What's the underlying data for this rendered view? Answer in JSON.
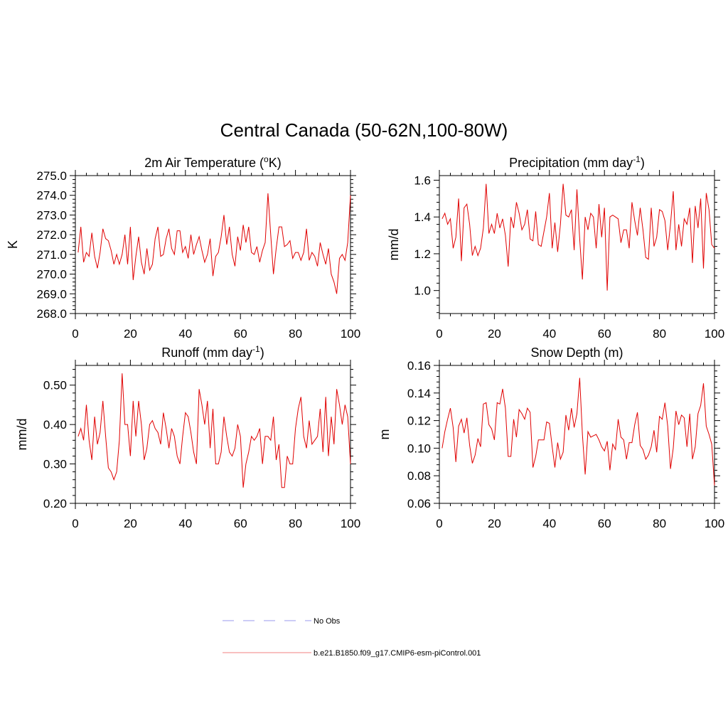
{
  "figure": {
    "title": "Central Canada (50-62N,100-80W)"
  },
  "legend": {
    "items": [
      {
        "label": "No Obs",
        "color": "#9999ee",
        "dash": true
      },
      {
        "label": "b.e21.B1850.f09_g17.CMIP6-esm-piControl.001",
        "color": "#f08080",
        "dash": false
      }
    ]
  },
  "chart_data": [
    {
      "type": "line",
      "title": "2m Air Temperature (",
      "title_sup": "o",
      "title_suffix": "K)",
      "xlabel": "",
      "ylabel": "K",
      "xlim": [
        0,
        100
      ],
      "ylim": [
        268,
        275
      ],
      "xticks": [
        0,
        20,
        40,
        60,
        80,
        100
      ],
      "xtick_labels": [
        "0",
        "20",
        "40",
        "60",
        "80",
        "100"
      ],
      "yticks": [
        268,
        269,
        270,
        271,
        272,
        273,
        274,
        275
      ],
      "ytick_labels": [
        "268.0",
        "269.0",
        "270.0",
        "271.0",
        "272.0",
        "273.0",
        "274.0",
        "275.0"
      ],
      "series": [
        {
          "name": "b.e21.B1850.f09_g17.CMIP6-esm-piControl.001",
          "color": "#e00000",
          "x_start": 1,
          "x_step": 1,
          "values": [
            271.1,
            272.4,
            270.6,
            271.1,
            270.9,
            272.1,
            270.9,
            270.3,
            271.1,
            272.3,
            271.8,
            271.7,
            271.2,
            270.5,
            271.0,
            270.5,
            271.0,
            272.0,
            270.5,
            272.4,
            269.7,
            270.9,
            271.9,
            270.6,
            270.0,
            271.3,
            270.2,
            270.5,
            271.8,
            272.4,
            270.9,
            271.0,
            271.8,
            272.3,
            271.3,
            271.0,
            272.2,
            272.2,
            271.1,
            271.4,
            270.8,
            272.0,
            271.0,
            271.5,
            271.9,
            271.2,
            270.6,
            271.0,
            271.8,
            269.9,
            270.9,
            271.1,
            271.9,
            273.0,
            271.5,
            272.4,
            271.0,
            270.4,
            271.9,
            271.2,
            272.5,
            271.6,
            272.4,
            271.1,
            271.0,
            271.4,
            270.6,
            271.2,
            271.6,
            274.1,
            272.0,
            270.0,
            271.3,
            272.4,
            272.4,
            271.4,
            271.5,
            271.7,
            270.8,
            271.1,
            271.1,
            270.7,
            271.1,
            272.3,
            270.7,
            271.1,
            270.9,
            270.4,
            271.6,
            271.0,
            270.5,
            271.3,
            270.0,
            269.6,
            269.0,
            270.8,
            271.0,
            270.7,
            271.6,
            274.0
          ]
        }
      ]
    },
    {
      "type": "line",
      "title": "Precipitation (mm day",
      "title_sup": "-1",
      "title_suffix": ")",
      "xlabel": "",
      "ylabel": "mm/d",
      "xlim": [
        0,
        100
      ],
      "ylim": [
        0.875,
        1.625
      ],
      "xticks": [
        0,
        20,
        40,
        60,
        80,
        100
      ],
      "xtick_labels": [
        "0",
        "20",
        "40",
        "60",
        "80",
        "100"
      ],
      "yticks": [
        1.0,
        1.2,
        1.4,
        1.6
      ],
      "ytick_labels": [
        "1.0",
        "1.2",
        "1.4",
        "1.6"
      ],
      "series": [
        {
          "name": "b.e21.B1850.f09_g17.CMIP6-esm-piControl.001",
          "color": "#e00000",
          "x_start": 1,
          "x_step": 1,
          "values": [
            1.39,
            1.42,
            1.36,
            1.39,
            1.23,
            1.29,
            1.5,
            1.16,
            1.45,
            1.47,
            1.36,
            1.19,
            1.24,
            1.19,
            1.23,
            1.34,
            1.58,
            1.31,
            1.36,
            1.31,
            1.42,
            1.34,
            1.39,
            1.3,
            1.13,
            1.4,
            1.34,
            1.48,
            1.42,
            1.33,
            1.36,
            1.44,
            1.28,
            1.27,
            1.43,
            1.25,
            1.24,
            1.32,
            1.4,
            1.53,
            1.23,
            1.37,
            1.21,
            1.36,
            1.58,
            1.41,
            1.4,
            1.44,
            1.22,
            1.55,
            1.28,
            1.06,
            1.4,
            1.33,
            1.42,
            1.4,
            1.23,
            1.47,
            1.29,
            1.45,
            1.0,
            1.4,
            1.41,
            1.4,
            1.39,
            1.26,
            1.33,
            1.33,
            1.23,
            1.48,
            1.38,
            1.3,
            1.45,
            1.33,
            1.18,
            1.17,
            1.45,
            1.24,
            1.29,
            1.44,
            1.43,
            1.38,
            1.22,
            1.36,
            1.54,
            1.22,
            1.36,
            1.24,
            1.39,
            1.36,
            1.45,
            1.15,
            1.46,
            1.34,
            1.5,
            1.12,
            1.53,
            1.44,
            1.25,
            1.23
          ]
        }
      ]
    },
    {
      "type": "line",
      "title": "Runoff (mm day",
      "title_sup": "-1",
      "title_suffix": ")",
      "xlabel": "",
      "ylabel": "mm/d",
      "xlim": [
        0,
        100
      ],
      "ylim": [
        0.2,
        0.55
      ],
      "xticks": [
        0,
        20,
        40,
        60,
        80,
        100
      ],
      "xtick_labels": [
        "0",
        "20",
        "40",
        "60",
        "80",
        "100"
      ],
      "yticks": [
        0.2,
        0.3,
        0.4,
        0.5
      ],
      "ytick_labels": [
        "0.20",
        "0.30",
        "0.40",
        "0.50"
      ],
      "series": [
        {
          "name": "b.e21.B1850.f09_g17.CMIP6-esm-piControl.001",
          "color": "#e00000",
          "x_start": 1,
          "x_step": 1,
          "values": [
            0.37,
            0.39,
            0.36,
            0.45,
            0.36,
            0.31,
            0.42,
            0.35,
            0.38,
            0.46,
            0.37,
            0.29,
            0.28,
            0.26,
            0.28,
            0.36,
            0.53,
            0.4,
            0.4,
            0.32,
            0.46,
            0.37,
            0.46,
            0.4,
            0.31,
            0.34,
            0.4,
            0.41,
            0.39,
            0.38,
            0.35,
            0.43,
            0.39,
            0.34,
            0.39,
            0.37,
            0.32,
            0.3,
            0.37,
            0.43,
            0.42,
            0.38,
            0.33,
            0.3,
            0.49,
            0.45,
            0.4,
            0.46,
            0.34,
            0.44,
            0.3,
            0.3,
            0.33,
            0.42,
            0.37,
            0.33,
            0.32,
            0.34,
            0.4,
            0.37,
            0.24,
            0.3,
            0.33,
            0.37,
            0.36,
            0.37,
            0.39,
            0.3,
            0.37,
            0.37,
            0.36,
            0.42,
            0.31,
            0.35,
            0.24,
            0.24,
            0.32,
            0.3,
            0.3,
            0.39,
            0.44,
            0.47,
            0.37,
            0.34,
            0.41,
            0.35,
            0.36,
            0.37,
            0.44,
            0.33,
            0.47,
            0.32,
            0.42,
            0.35,
            0.49,
            0.45,
            0.4,
            0.45,
            0.42,
            0.3
          ]
        }
      ]
    },
    {
      "type": "line",
      "title": "Snow Depth (m)",
      "title_sup": "",
      "title_suffix": "",
      "xlabel": "",
      "ylabel": "m",
      "xlim": [
        0,
        100
      ],
      "ylim": [
        0.06,
        0.16
      ],
      "xticks": [
        0,
        20,
        40,
        60,
        80,
        100
      ],
      "xtick_labels": [
        "0",
        "20",
        "40",
        "60",
        "80",
        "100"
      ],
      "yticks": [
        0.06,
        0.08,
        0.1,
        0.12,
        0.14,
        0.16
      ],
      "ytick_labels": [
        "0.06",
        "0.08",
        "0.10",
        "0.12",
        "0.14",
        "0.16"
      ],
      "series": [
        {
          "name": "b.e21.B1850.f09_g17.CMIP6-esm-piControl.001",
          "color": "#e00000",
          "x_start": 1,
          "x_step": 1,
          "values": [
            0.1,
            0.112,
            0.121,
            0.129,
            0.115,
            0.09,
            0.116,
            0.121,
            0.111,
            0.122,
            0.102,
            0.089,
            0.095,
            0.107,
            0.101,
            0.132,
            0.133,
            0.117,
            0.114,
            0.106,
            0.133,
            0.132,
            0.143,
            0.129,
            0.094,
            0.094,
            0.121,
            0.108,
            0.128,
            0.125,
            0.121,
            0.129,
            0.126,
            0.086,
            0.094,
            0.106,
            0.106,
            0.106,
            0.119,
            0.118,
            0.101,
            0.086,
            0.104,
            0.092,
            0.097,
            0.124,
            0.113,
            0.129,
            0.115,
            0.125,
            0.151,
            0.11,
            0.081,
            0.112,
            0.108,
            0.109,
            0.11,
            0.106,
            0.101,
            0.098,
            0.105,
            0.084,
            0.103,
            0.099,
            0.121,
            0.108,
            0.106,
            0.092,
            0.104,
            0.104,
            0.117,
            0.126,
            0.102,
            0.099,
            0.092,
            0.095,
            0.101,
            0.113,
            0.097,
            0.123,
            0.121,
            0.133,
            0.116,
            0.085,
            0.1,
            0.127,
            0.117,
            0.124,
            0.122,
            0.101,
            0.125,
            0.092,
            0.101,
            0.125,
            0.131,
            0.147,
            0.116,
            0.11,
            0.103,
            0.073
          ]
        }
      ]
    }
  ]
}
